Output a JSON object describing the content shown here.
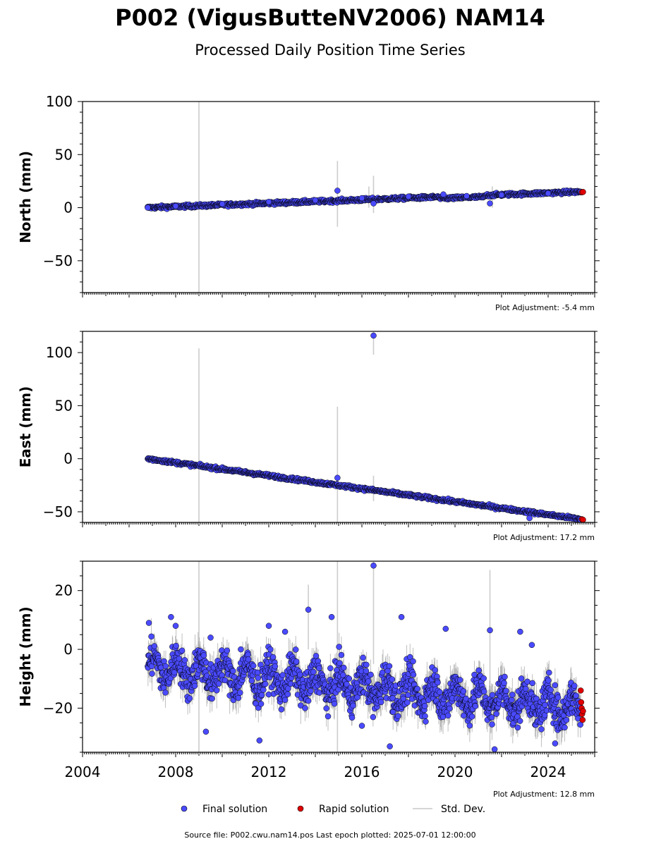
{
  "header": {
    "title": "P002 (VigusButteNV2006) NAM14",
    "subtitle": "Processed Daily Position Time Series"
  },
  "legend": {
    "final_label": "Final solution",
    "rapid_label": "Rapid solution",
    "std_label": "Std. Dev."
  },
  "footer": {
    "source": "Source file: P002.cwu.nam14.pos  Last epoch plotted: 2025-07-01 12:00:00"
  },
  "colors": {
    "final": "#4a4aff",
    "rapid": "#e00000",
    "std": "#b0b0b0",
    "edge": "#000000"
  },
  "chart_data": [
    {
      "type": "scatter",
      "ylabel": "North (mm)",
      "adjustment": "Plot Adjustment: -5.4 mm",
      "xlim": [
        2004,
        2026
      ],
      "ylim": [
        -80,
        100
      ],
      "yticks": [
        -50,
        0,
        50,
        100
      ],
      "xticks": [
        2004,
        2008,
        2012,
        2016,
        2020,
        2024
      ],
      "show_x_labels": false,
      "trend": {
        "start": [
          2006.8,
          0
        ],
        "end": [
          2025.4,
          15
        ]
      },
      "noise": 1.3,
      "final_series": [
        [
          2006.8,
          0
        ],
        [
          2008.0,
          1.5
        ],
        [
          2010.0,
          3.5
        ],
        [
          2012.0,
          5.5
        ],
        [
          2014.0,
          7
        ],
        [
          2016.0,
          9
        ],
        [
          2018.0,
          10.5
        ],
        [
          2019.5,
          12.5
        ],
        [
          2020.5,
          11
        ],
        [
          2022.0,
          12
        ],
        [
          2024.0,
          13.5
        ],
        [
          2025.4,
          15
        ]
      ],
      "rapid_points": [
        [
          2025.45,
          14.5
        ],
        [
          2025.5,
          14.8
        ]
      ],
      "outliers": [
        [
          2014.95,
          16
        ],
        [
          2016.5,
          4
        ],
        [
          2021.5,
          4
        ]
      ],
      "std_spikes": [
        [
          2009.0,
          -80,
          100
        ],
        [
          2014.95,
          -18,
          44
        ],
        [
          2016.5,
          -5,
          30
        ],
        [
          2016.3,
          0,
          20
        ],
        [
          2021.6,
          0,
          20
        ]
      ]
    },
    {
      "type": "scatter",
      "ylabel": "East (mm)",
      "adjustment": "Plot Adjustment: 17.2 mm",
      "xlim": [
        2004,
        2026
      ],
      "ylim": [
        -60,
        120
      ],
      "yticks": [
        -50,
        0,
        50,
        100
      ],
      "xticks": [
        2004,
        2008,
        2012,
        2016,
        2020,
        2024
      ],
      "show_x_labels": false,
      "trend": {
        "start": [
          2006.8,
          0
        ],
        "end": [
          2025.4,
          -57
        ]
      },
      "noise": 1.3,
      "final_series": [],
      "rapid_points": [
        [
          2025.45,
          -57
        ],
        [
          2025.5,
          -57.5
        ]
      ],
      "outliers": [
        [
          2014.95,
          -18
        ],
        [
          2016.5,
          116
        ],
        [
          2023.2,
          -56
        ]
      ],
      "std_spikes": [
        [
          2009.0,
          -60,
          104
        ],
        [
          2014.95,
          -60,
          49
        ],
        [
          2016.5,
          98,
          120
        ],
        [
          2016.5,
          -40,
          -16
        ]
      ]
    },
    {
      "type": "scatter",
      "ylabel": "Height (mm)",
      "adjustment": "Plot Adjustment: 12.8 mm",
      "xlim": [
        2004,
        2026
      ],
      "ylim": [
        -35,
        30
      ],
      "yticks": [
        -20,
        0,
        20
      ],
      "xticks": [
        2004,
        2008,
        2012,
        2016,
        2020,
        2024
      ],
      "show_x_labels": true,
      "trend": {
        "start": [
          2006.8,
          -6
        ],
        "end": [
          2025.4,
          -20
        ]
      },
      "noise": 5.5,
      "final_series": [],
      "rapid_points": [
        [
          2025.4,
          -14
        ],
        [
          2025.42,
          -18
        ],
        [
          2025.44,
          -20
        ],
        [
          2025.46,
          -22
        ],
        [
          2025.48,
          -24
        ],
        [
          2025.5,
          -21
        ]
      ],
      "outliers": [
        [
          2006.85,
          9
        ],
        [
          2007.8,
          11
        ],
        [
          2008.0,
          8
        ],
        [
          2009.5,
          4
        ],
        [
          2010.8,
          0
        ],
        [
          2012.0,
          8
        ],
        [
          2012.7,
          6
        ],
        [
          2013.7,
          13.5
        ],
        [
          2014.7,
          11
        ],
        [
          2016.5,
          28.5
        ],
        [
          2017.7,
          11
        ],
        [
          2019.6,
          7
        ],
        [
          2021.5,
          6.5
        ],
        [
          2022.8,
          6
        ],
        [
          2023.3,
          1.5
        ],
        [
          2009.3,
          -28
        ],
        [
          2011.6,
          -31
        ],
        [
          2016.0,
          -26
        ],
        [
          2017.2,
          -33
        ],
        [
          2021.7,
          -34
        ],
        [
          2024.3,
          -32
        ]
      ],
      "std_spikes": [
        [
          2009.0,
          -35,
          30
        ],
        [
          2014.95,
          -35,
          30
        ],
        [
          2016.5,
          -5,
          30
        ],
        [
          2021.5,
          -35,
          27
        ],
        [
          2013.7,
          0,
          22
        ]
      ]
    }
  ]
}
